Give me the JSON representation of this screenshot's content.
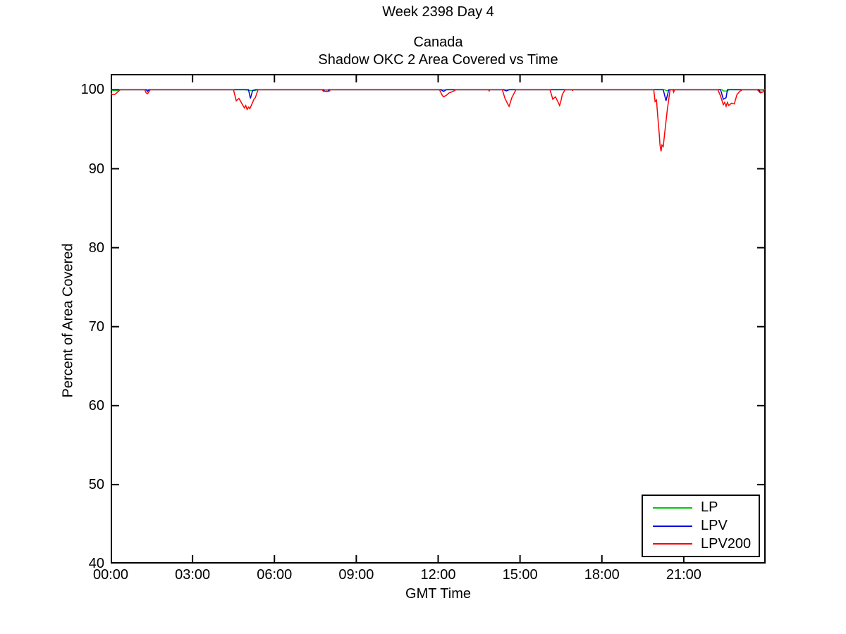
{
  "figure": {
    "title_line1": "Week 2398 Day 4",
    "title_line2": "Canada",
    "title_line3": "Shadow OKC 2 Area Covered vs Time"
  },
  "chart_data": {
    "type": "line",
    "title": "Week 2398 Day 4",
    "subtitle": "Canada",
    "subtitle2": "Shadow OKC 2 Area Covered vs Time",
    "xlabel": "GMT Time",
    "ylabel": "Percent of Area Covered",
    "x_unit": "hours",
    "xlim": [
      0,
      24
    ],
    "ylim": [
      40,
      102
    ],
    "grid": false,
    "x_ticks": [
      {
        "value": 0,
        "label": "00:00"
      },
      {
        "value": 3,
        "label": "03:00"
      },
      {
        "value": 6,
        "label": "06:00"
      },
      {
        "value": 9,
        "label": "09:00"
      },
      {
        "value": 12,
        "label": "12:00"
      },
      {
        "value": 15,
        "label": "15:00"
      },
      {
        "value": 18,
        "label": "18:00"
      },
      {
        "value": 21,
        "label": "21:00"
      }
    ],
    "y_ticks": [
      {
        "value": 40,
        "label": "40"
      },
      {
        "value": 50,
        "label": "50"
      },
      {
        "value": 60,
        "label": "60"
      },
      {
        "value": 70,
        "label": "70"
      },
      {
        "value": 80,
        "label": "80"
      },
      {
        "value": 90,
        "label": "90"
      },
      {
        "value": 100,
        "label": "100"
      }
    ],
    "legend": {
      "position": "bottom-right",
      "entries": [
        "LP",
        "LPV",
        "LPV200"
      ]
    },
    "series": [
      {
        "name": "LP",
        "color": "#00CC00",
        "points": [
          [
            0,
            100
          ],
          [
            0.1,
            99.9
          ],
          [
            0.3,
            99.9
          ],
          [
            0.35,
            100
          ],
          [
            4.9,
            100
          ],
          [
            5.15,
            99.9
          ],
          [
            5.3,
            99.9
          ],
          [
            5.35,
            100
          ],
          [
            20.3,
            100
          ],
          [
            20.35,
            99.9
          ],
          [
            20.45,
            99.9
          ],
          [
            20.5,
            100
          ],
          [
            22.4,
            100
          ],
          [
            22.45,
            99.85
          ],
          [
            22.6,
            99.85
          ],
          [
            22.65,
            100
          ],
          [
            23.98,
            100
          ]
        ]
      },
      {
        "name": "LPV",
        "color": "#0000DD",
        "points": [
          [
            0,
            100
          ],
          [
            1.3,
            100
          ],
          [
            1.35,
            99.8
          ],
          [
            1.4,
            100
          ],
          [
            4.55,
            100
          ],
          [
            5.05,
            100
          ],
          [
            5.12,
            98.9
          ],
          [
            5.2,
            99.9
          ],
          [
            5.3,
            100
          ],
          [
            7.8,
            100
          ],
          [
            7.85,
            99.8
          ],
          [
            7.95,
            99.8
          ],
          [
            8.0,
            100
          ],
          [
            12.1,
            100
          ],
          [
            12.2,
            99.8
          ],
          [
            12.3,
            100
          ],
          [
            14.4,
            100
          ],
          [
            14.5,
            99.85
          ],
          [
            14.6,
            100
          ],
          [
            20.25,
            100
          ],
          [
            20.35,
            98.6
          ],
          [
            20.45,
            100
          ],
          [
            22.35,
            100
          ],
          [
            22.45,
            98.8
          ],
          [
            22.55,
            99.0
          ],
          [
            22.6,
            100
          ],
          [
            23.75,
            100
          ],
          [
            23.8,
            99.7
          ],
          [
            23.9,
            99.7
          ],
          [
            23.95,
            100
          ],
          [
            23.98,
            100
          ]
        ]
      },
      {
        "name": "LPV200",
        "color": "#FF0000",
        "points": [
          [
            0,
            99.6
          ],
          [
            0.05,
            99.4
          ],
          [
            0.15,
            99.4
          ],
          [
            0.25,
            99.7
          ],
          [
            0.35,
            100
          ],
          [
            1.25,
            100
          ],
          [
            1.3,
            99.6
          ],
          [
            1.35,
            99.5
          ],
          [
            1.45,
            100
          ],
          [
            4.5,
            100
          ],
          [
            4.6,
            98.6
          ],
          [
            4.7,
            98.9
          ],
          [
            4.8,
            98.3
          ],
          [
            4.9,
            97.7
          ],
          [
            4.95,
            98.0
          ],
          [
            5.0,
            97.5
          ],
          [
            5.05,
            97.8
          ],
          [
            5.1,
            97.6
          ],
          [
            5.2,
            98.4
          ],
          [
            5.25,
            98.8
          ],
          [
            5.3,
            99.0
          ],
          [
            5.4,
            100
          ],
          [
            7.75,
            100
          ],
          [
            7.8,
            99.8
          ],
          [
            7.9,
            99.85
          ],
          [
            8.0,
            99.8
          ],
          [
            8.05,
            100
          ],
          [
            12.05,
            100
          ],
          [
            12.15,
            99.3
          ],
          [
            12.2,
            99.1
          ],
          [
            12.3,
            99.3
          ],
          [
            12.4,
            99.6
          ],
          [
            12.55,
            99.8
          ],
          [
            12.65,
            100
          ],
          [
            13.85,
            100
          ],
          [
            13.87,
            99.85
          ],
          [
            13.9,
            100
          ],
          [
            14.35,
            100
          ],
          [
            14.45,
            98.9
          ],
          [
            14.55,
            98.2
          ],
          [
            14.6,
            97.9
          ],
          [
            14.7,
            99.0
          ],
          [
            14.85,
            100
          ],
          [
            16.1,
            100
          ],
          [
            16.2,
            98.8
          ],
          [
            16.3,
            99.1
          ],
          [
            16.4,
            98.4
          ],
          [
            16.45,
            98.0
          ],
          [
            16.5,
            98.6
          ],
          [
            16.55,
            99.4
          ],
          [
            16.65,
            100
          ],
          [
            16.9,
            100
          ],
          [
            16.92,
            99.9
          ],
          [
            16.95,
            100
          ],
          [
            19.9,
            100
          ],
          [
            19.95,
            98.5
          ],
          [
            20.0,
            98.7
          ],
          [
            20.05,
            96.5
          ],
          [
            20.1,
            94.5
          ],
          [
            20.13,
            93.0
          ],
          [
            20.17,
            92.2
          ],
          [
            20.2,
            93.0
          ],
          [
            20.25,
            92.8
          ],
          [
            20.3,
            94.5
          ],
          [
            20.4,
            97.5
          ],
          [
            20.5,
            100
          ],
          [
            20.6,
            100
          ],
          [
            20.63,
            99.7
          ],
          [
            20.66,
            100
          ],
          [
            22.25,
            100
          ],
          [
            22.35,
            99.2
          ],
          [
            22.45,
            98.1
          ],
          [
            22.5,
            98.4
          ],
          [
            22.55,
            97.9
          ],
          [
            22.6,
            98.4
          ],
          [
            22.65,
            98.0
          ],
          [
            22.75,
            98.3
          ],
          [
            22.85,
            98.2
          ],
          [
            22.95,
            99.4
          ],
          [
            23.05,
            99.8
          ],
          [
            23.15,
            100
          ],
          [
            23.7,
            100
          ],
          [
            23.8,
            99.6
          ],
          [
            23.9,
            99.7
          ],
          [
            23.95,
            100
          ],
          [
            23.98,
            100
          ]
        ]
      }
    ]
  }
}
